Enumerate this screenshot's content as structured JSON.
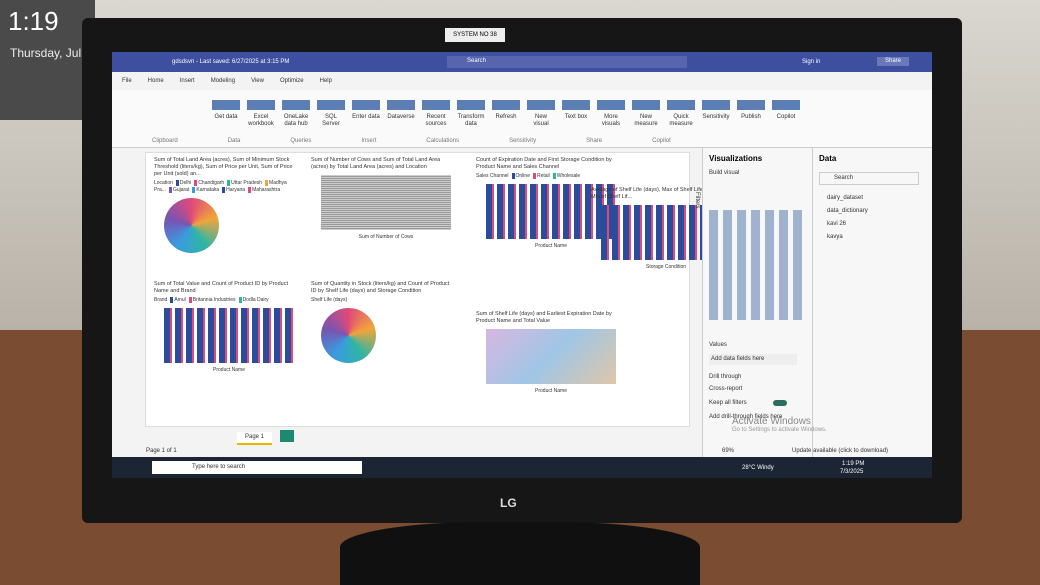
{
  "phone_clock": {
    "time": "1:19",
    "date": "Thursday, Jul"
  },
  "monitor_label": "SYSTEM NO 38",
  "brand": "LG",
  "title_bar": {
    "file": "gdsdsvn - Last saved: 6/27/2025 at 3:15 PM",
    "search": "Search",
    "user": "Sign in",
    "share": "Share"
  },
  "ribbon_tabs": [
    "File",
    "Home",
    "Insert",
    "Modeling",
    "View",
    "Optimize",
    "Help"
  ],
  "ribbon_buttons": [
    "Get data",
    "Excel workbook",
    "OneLake data hub",
    "SQL Server",
    "Enter data",
    "Dataverse",
    "Recent sources",
    "Transform data",
    "Refresh",
    "New visual",
    "Text box",
    "More visuals",
    "New measure",
    "Quick measure",
    "Sensitivity",
    "Publish",
    "Copilot"
  ],
  "ribbon_groups": [
    "Clipboard",
    "Data",
    "Queries",
    "Insert",
    "Calculations",
    "Sensitivity",
    "Share",
    "Copilot"
  ],
  "visuals": [
    {
      "title": "Sum of Total Land Area (acres), Sum of Minimum Stock Threshold (liters/kg), Sum of Price per Unit, Sum of Price per Unit (sold) an...",
      "legend_title": "Location",
      "legend": [
        "Delhi",
        "Chandigarh",
        "Uttar Pradesh",
        "Madhya Pra...",
        "Gujarat",
        "Karnataka",
        "Haryana",
        "Maharashtra"
      ]
    },
    {
      "title": "Sum of Number of Cows and Sum of Total Land Area (acres) by Total Land Area (acres) and Location",
      "x_label": "Sum of Number of Cows"
    },
    {
      "title": "Count of Expiration Date and First Storage Condition by Product Name and Sales Channel",
      "legend_title": "Sales Channel",
      "legend": [
        "Online",
        "Retail",
        "Wholesale"
      ],
      "x_label": "Product Name"
    },
    {
      "title": "Average of Shelf Life (days), Max of Shelf Life (days) and Min of Shelf Lif...",
      "x_label": "Storage Condition"
    },
    {
      "title": "Sum of Total Value and Count of Product ID by Product Name and Brand",
      "legend_title": "Brand",
      "legend": [
        "Amul",
        "Britannia Industries",
        "Dodla Dairy"
      ],
      "x_label": "Product Name"
    },
    {
      "title": "Sum of Quantity in Stock (liters/kg) and Count of Product ID by Shelf Life (days) and Storage Condition",
      "legend_title": "Shelf Life (days)"
    },
    {
      "title": "Sum of Shelf Life (days) and Earliest Expiration Date by Product Name and Total Value",
      "x_label": "Product Name"
    }
  ],
  "filters_label": "Filters",
  "visualizations_pane": {
    "title": "Visualizations",
    "build": "Build visual",
    "values": "Values",
    "values_hint": "Add data fields here",
    "drill": "Drill through",
    "cross_report": "Cross-report",
    "keep_filters": "Keep all filters",
    "drill_hint": "Add drill-through fields here"
  },
  "data_pane": {
    "title": "Data",
    "search": "Search",
    "tables": [
      "dairy_dataset",
      "data_dictionary",
      "kavi 26",
      "kavya"
    ]
  },
  "page_tab": "Page 1",
  "status": {
    "pages": "Page 1 of 1",
    "zoom": "69%",
    "update": "Update available (click to download)"
  },
  "watermark": {
    "title": "Activate Windows",
    "text": "Go to Settings to activate Windows."
  },
  "taskbar": {
    "search": "Type here to search",
    "weather": "28°C Windy",
    "time": "1:19 PM",
    "date": "7/3/2025"
  }
}
